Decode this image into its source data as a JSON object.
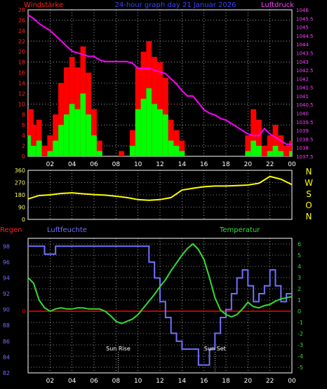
{
  "header": {
    "left_label": "Windstärke",
    "center_label": "24-hour graph day 21 Januar 2026",
    "right_label": "Luftdruck"
  },
  "colors": {
    "wind_avg": "#00ff00",
    "wind_gust": "#ff0000",
    "pressure": "#ff00ff",
    "direction": "#ffff00",
    "humidity": "#7070ff",
    "temperature": "#33dd33",
    "zero_line": "#ff0000",
    "axis_text_right": "#ff40ff",
    "axis_text_left": "#ff2020",
    "grid": "#ffffff",
    "frame": "#ffffff"
  },
  "chart_data": [
    {
      "type": "line",
      "name_title": "wind-pressure",
      "x_ticks": [
        "02",
        "04",
        "06",
        "08",
        "10",
        "12",
        "14",
        "16",
        "18",
        "20",
        "22",
        "00"
      ],
      "left_axis": {
        "label": "Windstärke",
        "ylim": [
          0,
          28
        ],
        "ticks": [
          "0",
          "2",
          "4",
          "6",
          "8",
          "10",
          "12",
          "14",
          "16",
          "18",
          "20",
          "22",
          "24",
          "26",
          "28"
        ]
      },
      "right_axis": {
        "label": "Luftdruck",
        "ylim": [
          1037.5,
          1046
        ],
        "ticks": [
          "1037.5",
          "1038",
          "1038.5",
          "1039",
          "1039.5",
          "1040",
          "1040.5",
          "1041",
          "1041.5",
          "1042",
          "1042.5",
          "1043",
          "1043.5",
          "1044",
          "1044.5",
          "1045",
          "1045.5",
          "1046"
        ]
      },
      "x_hours": [
        0,
        0.5,
        1,
        1.5,
        2,
        2.5,
        3,
        3.5,
        4,
        4.5,
        5,
        5.5,
        6,
        6.5,
        7,
        7.5,
        8,
        8.5,
        9,
        9.5,
        10,
        10.5,
        11,
        11.5,
        12,
        12.5,
        13,
        13.5,
        14,
        14.5,
        15,
        15.5,
        16,
        16.5,
        17,
        17.5,
        18,
        18.5,
        19,
        19.5,
        20,
        20.5,
        21,
        21.5,
        22,
        22.5,
        23,
        23.5,
        24
      ],
      "series": [
        {
          "name": "wind_avg",
          "values": [
            4,
            2,
            3,
            0,
            1,
            3,
            6,
            8,
            10,
            9,
            12,
            8,
            4,
            1,
            0,
            0,
            0,
            0,
            0,
            2,
            9,
            11,
            13,
            10,
            9,
            8,
            3,
            2,
            1,
            0,
            0,
            0,
            0,
            0,
            0,
            0,
            0,
            0,
            0,
            0,
            1,
            3,
            2,
            0,
            1,
            2,
            1,
            0,
            1
          ]
        },
        {
          "name": "wind_gust",
          "values": [
            9,
            6,
            7,
            2,
            4,
            8,
            14,
            17,
            19,
            17,
            21,
            16,
            9,
            3,
            0,
            0,
            0,
            1,
            0,
            5,
            17,
            20,
            22,
            19,
            18,
            15,
            7,
            5,
            3,
            0,
            0,
            0,
            0,
            0,
            0,
            0,
            0,
            0,
            0,
            0,
            4,
            9,
            7,
            2,
            4,
            6,
            4,
            2,
            3
          ]
        },
        {
          "name": "pressure",
          "values": [
            1045.7,
            1045.5,
            1045.2,
            1045.0,
            1044.8,
            1044.5,
            1044.2,
            1043.9,
            1043.6,
            1043.5,
            1043.4,
            1043.3,
            1043.3,
            1043.1,
            1043.0,
            1043.0,
            1043.0,
            1043.0,
            1043.0,
            1042.9,
            1042.6,
            1042.6,
            1042.6,
            1042.5,
            1042.4,
            1042.3,
            1042.0,
            1041.7,
            1041.3,
            1041.0,
            1041.0,
            1040.6,
            1040.2,
            1040.0,
            1039.9,
            1039.7,
            1039.6,
            1039.4,
            1039.2,
            1039.0,
            1038.8,
            1038.7,
            1038.7,
            1039.1,
            1038.8,
            1038.6,
            1038.4,
            1038.2,
            1038.2
          ]
        }
      ]
    },
    {
      "type": "line",
      "name_title": "wind-direction",
      "x_ticks": [
        "02",
        "04",
        "06",
        "08",
        "10",
        "12",
        "14",
        "16",
        "18",
        "20",
        "22",
        "00"
      ],
      "left_axis": {
        "ylim": [
          0,
          360
        ],
        "ticks": [
          "0",
          "90",
          "180",
          "270",
          "360"
        ]
      },
      "direction_labels": [
        "N",
        "W",
        "S",
        "O",
        "N"
      ],
      "x_hours": [
        0,
        1,
        2,
        3,
        4,
        5,
        6,
        7,
        8,
        9,
        10,
        11,
        12,
        13,
        14,
        15,
        16,
        17,
        18,
        19,
        20,
        21,
        22,
        23,
        24
      ],
      "series": [
        {
          "name": "direction",
          "values": [
            150,
            175,
            180,
            190,
            195,
            188,
            182,
            178,
            170,
            160,
            145,
            140,
            145,
            160,
            215,
            228,
            240,
            245,
            245,
            248,
            252,
            265,
            315,
            295,
            255
          ]
        }
      ]
    },
    {
      "type": "line",
      "name_title": "humidity-temperature",
      "left_labels": {
        "regen": "Regen",
        "humidity": "Luftfeuchte",
        "temperature": "Temperatur"
      },
      "x_ticks": [
        "02",
        "04",
        "06",
        "08",
        "10",
        "12",
        "14",
        "16",
        "18",
        "20",
        "22",
        "00"
      ],
      "left_axis": {
        "ylim": [
          82,
          99
        ],
        "ticks": [
          "82",
          "84",
          "86",
          "88",
          "90",
          "92",
          "94",
          "96",
          "98"
        ]
      },
      "rain_axis": {
        "ticks": [
          "0"
        ]
      },
      "right_axis": {
        "ylim": [
          -5.5,
          6.5
        ],
        "ticks": [
          "-5",
          "-4",
          "-3",
          "-2",
          "-1",
          "0",
          "1",
          "2",
          "3",
          "4",
          "5",
          "6"
        ]
      },
      "annotations": [
        {
          "label": "Sun Rise",
          "hour": 8.2
        },
        {
          "label": "Sun Set",
          "hour": 17.0
        }
      ],
      "x_hours": [
        0,
        0.5,
        1,
        1.5,
        2,
        2.5,
        3,
        3.5,
        4,
        4.5,
        5,
        5.5,
        6,
        6.5,
        7,
        7.5,
        8,
        8.5,
        9,
        9.5,
        10,
        10.5,
        11,
        11.5,
        12,
        12.5,
        13,
        13.5,
        14,
        14.5,
        15,
        15.5,
        16,
        16.5,
        17,
        17.5,
        18,
        18.5,
        19,
        19.5,
        20,
        20.5,
        21,
        21.5,
        22,
        22.5,
        23,
        23.5,
        24
      ],
      "series": [
        {
          "name": "humidity",
          "values": [
            98,
            98,
            98,
            97,
            97,
            98,
            98,
            98,
            98,
            98,
            98,
            98,
            98,
            98,
            98,
            98,
            98,
            98,
            98,
            98,
            98,
            98,
            96,
            94,
            91,
            89,
            87,
            86,
            85,
            85,
            85,
            83,
            83,
            85,
            87,
            89,
            90,
            92,
            94,
            95,
            93,
            91,
            92,
            93,
            95,
            93,
            91,
            92,
            92
          ]
        },
        {
          "name": "temperature",
          "values": [
            3.0,
            2.5,
            1.0,
            0.3,
            0.0,
            0.2,
            0.3,
            0.2,
            0.2,
            0.3,
            0.3,
            0.2,
            0.2,
            0.2,
            0.0,
            -0.4,
            -0.9,
            -1.1,
            -0.9,
            -0.7,
            -0.3,
            0.3,
            0.9,
            1.5,
            2.2,
            2.8,
            3.6,
            4.3,
            5.0,
            5.6,
            6.0,
            5.5,
            4.6,
            3.0,
            1.2,
            0.1,
            -0.3,
            -0.5,
            -0.3,
            0.2,
            0.8,
            0.4,
            0.3,
            0.5,
            0.6,
            0.9,
            1.1,
            1.2,
            1.3
          ]
        },
        {
          "name": "rain",
          "values": [
            0,
            0,
            0,
            0,
            0,
            0,
            0,
            0,
            0,
            0,
            0,
            0,
            0,
            0,
            0,
            0,
            0,
            0,
            0,
            0,
            0,
            0,
            0,
            0,
            0,
            0,
            0,
            0,
            0,
            0,
            0,
            0,
            0,
            0,
            0,
            0,
            0,
            0,
            0,
            0,
            0,
            0,
            0,
            0,
            0,
            0,
            0,
            0,
            0
          ]
        }
      ]
    }
  ]
}
